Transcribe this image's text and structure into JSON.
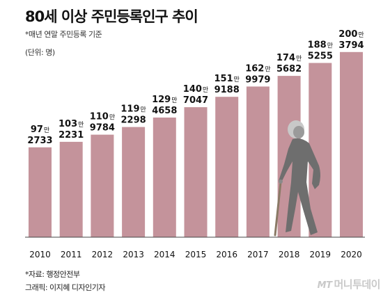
{
  "title": "80세 이상 주민등록인구 추이",
  "subtitle": "*매년 연말 주민등록 기준",
  "unit": "(단위: 명)",
  "source": "*자료: 행정안전부",
  "credit": "그래픽: 이지혜 디자인기자",
  "logo": {
    "mt": "MT",
    "name": "머니투데이"
  },
  "colors": {
    "bar": "#c4939b",
    "axis": "#444444",
    "figure": "#6e6e6e"
  },
  "icons": [
    "elderly-person-with-cane-icon"
  ],
  "chart_data": {
    "type": "bar",
    "categories": [
      "2010",
      "2011",
      "2012",
      "2013",
      "2014",
      "2015",
      "2016",
      "2017",
      "2018",
      "2019",
      "2020"
    ],
    "values": [
      972733,
      1032231,
      1109784,
      1192298,
      1294658,
      1407047,
      1519188,
      1629979,
      1745682,
      1885255,
      2003794
    ],
    "labels": [
      {
        "top": "97",
        "bottom": "2733"
      },
      {
        "top": "103",
        "bottom": "2231"
      },
      {
        "top": "110",
        "bottom": "9784"
      },
      {
        "top": "119",
        "bottom": "2298"
      },
      {
        "top": "129",
        "bottom": "4658"
      },
      {
        "top": "140",
        "bottom": "7047"
      },
      {
        "top": "151",
        "bottom": "9188"
      },
      {
        "top": "162",
        "bottom": "9979"
      },
      {
        "top": "174",
        "bottom": "5682"
      },
      {
        "top": "188",
        "bottom": "5255"
      },
      {
        "top": "200",
        "bottom": "3794"
      }
    ],
    "label_unit": "만",
    "title": "80세 이상 주민등록인구 추이",
    "xlabel": "",
    "ylabel": "",
    "ylim": [
      0,
      2100000
    ],
    "grid": false,
    "legend": "none"
  }
}
